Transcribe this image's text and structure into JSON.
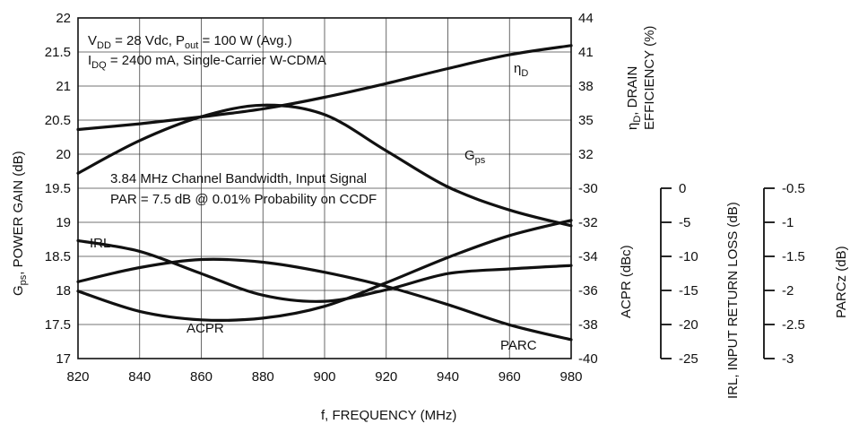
{
  "chart_data": {
    "type": "line",
    "xlabel": "f, FREQUENCY (MHz)",
    "x_ticks": [
      820,
      840,
      860,
      880,
      900,
      920,
      940,
      960,
      980
    ],
    "xlim": [
      820,
      980
    ],
    "axes": {
      "left": {
        "label_main": "G",
        "label_sub": "ps",
        "label_rest": ", POWER GAIN (dB)",
        "ylim": [
          17,
          22
        ],
        "ticks": [
          "22",
          "21.5",
          "21",
          "20.5",
          "20",
          "19.5",
          "19",
          "18.5",
          "18",
          "17.5",
          "17"
        ]
      },
      "right_efficiency": {
        "label_line1_main": "η",
        "label_line1_sub": "D",
        "label_line1_rest": ", DRAIN",
        "label_line2": "EFFICIENCY (%)",
        "ylim": [
          29,
          44
        ],
        "ticks": [
          "44",
          "41",
          "38",
          "35",
          "32"
        ]
      },
      "right_acpr": {
        "label": "ACPR (dBc)",
        "ylim": [
          -40,
          -29
        ],
        "ticks": [
          "-30",
          "-32",
          "-34",
          "-36",
          "-38",
          "-40"
        ]
      },
      "irl": {
        "label": "IRL, INPUT RETURN LOSS (dB)",
        "ticks": [
          "0",
          "-5",
          "-10",
          "-15",
          "-20",
          "-25"
        ],
        "ylim": [
          -25,
          0
        ]
      },
      "parc": {
        "label": "PARCz (dB)",
        "ticks": [
          "-0.5",
          "-1",
          "-1.5",
          "-2",
          "-2.5",
          "-3"
        ],
        "ylim": [
          -3,
          -0.5
        ]
      }
    },
    "annotation_top": {
      "line1": {
        "a": "V",
        "a_sub": "DD",
        "b": " = 28 Vdc, P",
        "b_sub": "out",
        "c": " = 100 W (Avg.)"
      },
      "line2": {
        "a": "I",
        "a_sub": "DQ",
        "b": " = 2400 mA, Single-Carrier W-CDMA"
      }
    },
    "annotation_mid": {
      "line1": "3.84 MHz Channel Bandwidth, Input Signal",
      "line2": "PAR = 7.5 dB @ 0.01% Probability on CCDF"
    },
    "series_labels": {
      "eta": {
        "main": "η",
        "sub": "D"
      },
      "gps": {
        "main": "G",
        "sub": "ps"
      },
      "irl": "IRL",
      "acpr": "ACPR",
      "parc": "PARC"
    },
    "series": [
      {
        "key": "eta",
        "axis": "right_efficiency",
        "x": [
          820,
          840,
          860,
          880,
          900,
          920,
          940,
          960,
          980
        ],
        "y": [
          34.3,
          34.8,
          35.4,
          36.1,
          37.1,
          38.3,
          39.6,
          40.8,
          41.6
        ]
      },
      {
        "key": "gps",
        "axis": "left",
        "x": [
          820,
          840,
          860,
          880,
          900,
          920,
          940,
          960,
          980
        ],
        "y": [
          19.72,
          20.2,
          20.55,
          20.72,
          20.58,
          20.05,
          19.52,
          19.18,
          18.95
        ]
      },
      {
        "key": "irl",
        "axis": "irl",
        "x": [
          820,
          840,
          860,
          880,
          900,
          920,
          940,
          960,
          980
        ],
        "y": [
          -7.5,
          -9.1,
          -12.4,
          -15.6,
          -16.5,
          -14.8,
          -12.4,
          -11.7,
          -11.2
        ]
      },
      {
        "key": "acpr",
        "axis": "right_acpr",
        "x": [
          820,
          840,
          860,
          880,
          900,
          920,
          940,
          960,
          980
        ],
        "y": [
          -36.0,
          -37.2,
          -37.7,
          -37.6,
          -36.9,
          -35.5,
          -34.0,
          -32.7,
          -31.8
        ]
      },
      {
        "key": "parc",
        "axis": "parc",
        "x": [
          820,
          840,
          860,
          880,
          900,
          920,
          940,
          960,
          980
        ],
        "y": [
          -1.86,
          -1.65,
          -1.53,
          -1.57,
          -1.72,
          -1.93,
          -2.2,
          -2.5,
          -2.72
        ]
      }
    ]
  }
}
